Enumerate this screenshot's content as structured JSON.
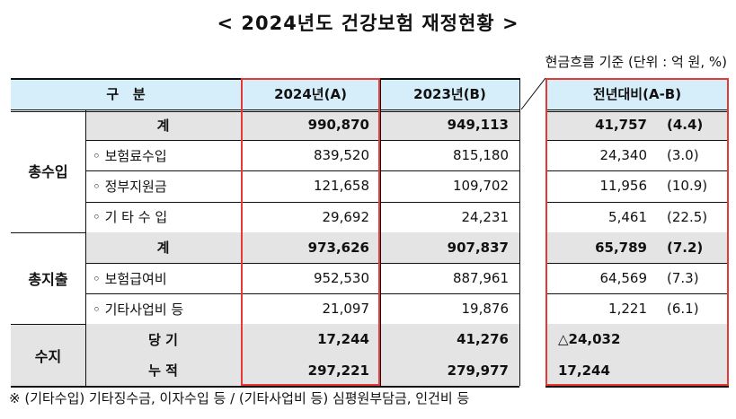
{
  "title": "< 2024년도 건강보험 재정현황 >",
  "unit_note": "현금흐름 기준 (단위 : 억 원, %)",
  "header": {
    "category": "구   분",
    "col_2024": "2024년(A)",
    "col_2023": "2023년(B)",
    "col_diff": "전년대비(A-B)"
  },
  "groups": [
    {
      "name": "총수입",
      "rows": [
        {
          "label": "계",
          "v2024": "990,870",
          "v2023": "949,113",
          "diff": "41,757",
          "pct": "(4.4)",
          "total": true
        },
        {
          "label": "◦ 보험료수입",
          "v2024": "839,520",
          "v2023": "815,180",
          "diff": "24,340",
          "pct": "(3.0)",
          "total": false
        },
        {
          "label": "◦ 정부지원금",
          "v2024": "121,658",
          "v2023": "109,702",
          "diff": "11,956",
          "pct": "(10.9)",
          "total": false
        },
        {
          "label": "◦ 기 타 수 입",
          "v2024": "29,692",
          "v2023": "24,231",
          "diff": "5,461",
          "pct": "(22.5)",
          "total": false
        }
      ]
    },
    {
      "name": "총지출",
      "rows": [
        {
          "label": "계",
          "v2024": "973,626",
          "v2023": "907,837",
          "diff": "65,789",
          "pct": "(7.2)",
          "total": true
        },
        {
          "label": "◦ 보험급여비",
          "v2024": "952,530",
          "v2023": "887,961",
          "diff": "64,569",
          "pct": "(7.3)",
          "total": false
        },
        {
          "label": "◦ 기타사업비 등",
          "v2024": "21,097",
          "v2023": "19,876",
          "diff": "1,221",
          "pct": "(6.1)",
          "total": false
        }
      ]
    },
    {
      "name": "수지",
      "rows": [
        {
          "label": "당 기",
          "v2024": "17,244",
          "v2023": "41,276",
          "diff": "△24,032",
          "pct": "",
          "total": true
        },
        {
          "label": "누 적",
          "v2024": "297,221",
          "v2023": "279,977",
          "diff": "17,244",
          "pct": "",
          "total": true
        }
      ]
    }
  ],
  "footnote": "※ (기타수입) 기타징수금, 이자수입 등 / (기타사업비 등) 심평원부담금, 인건비 등",
  "colors": {
    "header_bg": "#d6eef9",
    "total_bg": "#e4e4e4",
    "highlight_border": "#e53935",
    "rule": "#111111"
  }
}
